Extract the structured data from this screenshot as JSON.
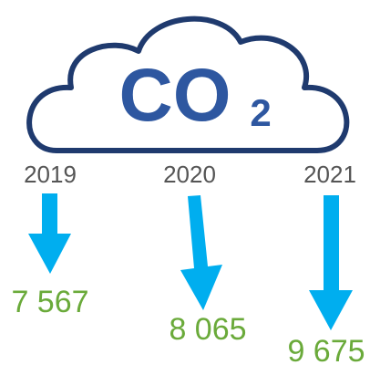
{
  "cloud": {
    "text": "CO",
    "subscript": "2"
  },
  "items": [
    {
      "year": "2019",
      "value": "7 567"
    },
    {
      "year": "2020",
      "value": "8 065"
    },
    {
      "year": "2021",
      "value": "9 675"
    }
  ]
}
